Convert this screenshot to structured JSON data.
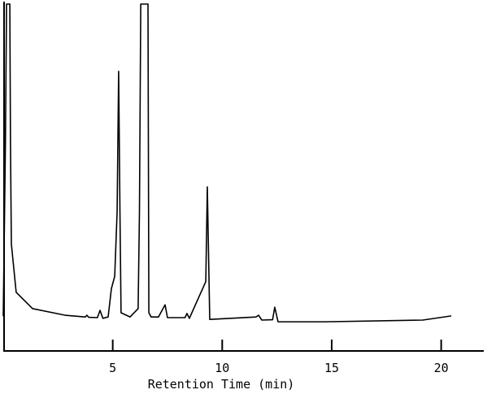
{
  "chart_data": {
    "type": "line",
    "x_label": "Retention Time (min)",
    "x": [
      0.0,
      0.1,
      0.15,
      0.3,
      0.33,
      0.37,
      0.59,
      1.34,
      2.82,
      3.75,
      3.82,
      3.9,
      4.3,
      4.42,
      4.55,
      4.79,
      4.94,
      5.09,
      5.2,
      5.27,
      5.33,
      5.38,
      5.79,
      6.16,
      6.22,
      6.28,
      6.61,
      6.65,
      6.75,
      7.09,
      7.39,
      7.5,
      8.3,
      8.39,
      8.5,
      9.25,
      9.32,
      9.43,
      11.55,
      11.66,
      11.81,
      12.3,
      12.4,
      12.55,
      14.7,
      19.16,
      20.46
    ],
    "series": [
      {
        "name": "signal",
        "color": "#000000",
        "values": [
          10,
          60,
          100,
          100,
          60,
          30.9,
          16.9,
          12.2,
          10.3,
          9.8,
          10.3,
          9.7,
          9.6,
          11.7,
          9.4,
          9.8,
          18,
          21.5,
          40,
          80.6,
          40,
          11,
          9.8,
          12.2,
          40,
          100,
          100,
          11,
          9.8,
          9.8,
          13.3,
          9.6,
          9.6,
          10.8,
          9.4,
          20,
          47.3,
          9.1,
          9.8,
          10.3,
          8.9,
          9,
          12.6,
          8.4,
          8.4,
          8.9,
          10.1
        ]
      }
    ],
    "xlim": [
      0,
      22
    ],
    "xticks": [
      5,
      10,
      15,
      20
    ],
    "ylim": [
      0,
      100
    ]
  }
}
